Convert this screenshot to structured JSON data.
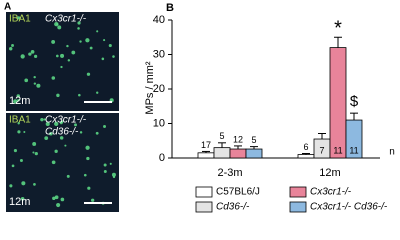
{
  "panels": {
    "a_letter": "A",
    "b_letter": "B"
  },
  "images": [
    {
      "stain": "IBA1",
      "genotype": [
        "Cx3cr1-/-"
      ],
      "age": "12m"
    },
    {
      "stain": "IBA1",
      "genotype": [
        "Cx3cr1-/-",
        "Cd36-/-"
      ],
      "age": "12m"
    }
  ],
  "chart_data": {
    "type": "bar",
    "ylabel": "MPs / mm²",
    "categories": [
      "2-3m",
      "12m"
    ],
    "series": [
      {
        "name": "C57BL6/J",
        "color": "#ffffff",
        "values": [
          1.5,
          1.0
        ],
        "errors": [
          0.4,
          0.3
        ],
        "n": [
          17,
          6
        ]
      },
      {
        "name": "Cd36-/-",
        "color": "#e4e4e4",
        "values": [
          3.0,
          5.5
        ],
        "errors": [
          1.4,
          1.6
        ],
        "n": [
          5,
          7
        ]
      },
      {
        "name": "Cx3cr1-/-",
        "color": "#e8849a",
        "values": [
          2.6,
          32.0
        ],
        "errors": [
          0.9,
          3.0
        ],
        "n": [
          12,
          11
        ]
      },
      {
        "name": "Cx3cr1-/- Cd36-/-",
        "color": "#8db9e0",
        "values": [
          2.6,
          11.0
        ],
        "errors": [
          0.7,
          2.0
        ],
        "n": [
          5,
          11
        ]
      }
    ],
    "n_label": "n",
    "annotations": [
      "*",
      "$"
    ],
    "ylim": [
      0,
      40
    ],
    "yticks": [
      0,
      10,
      20,
      30,
      40
    ]
  }
}
